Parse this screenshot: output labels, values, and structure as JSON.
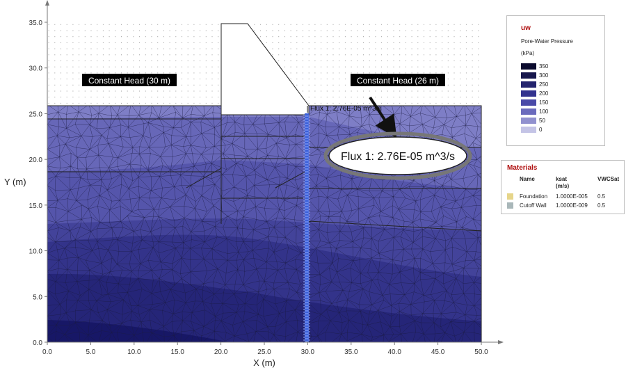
{
  "axes": {
    "x_label": "X (m)",
    "y_label": "Y (m)",
    "x_ticks": [
      "0.0",
      "5.0",
      "10.0",
      "15.0",
      "20.0",
      "25.0",
      "30.0",
      "35.0",
      "40.0",
      "45.0",
      "50.0"
    ],
    "y_ticks": [
      "0.0",
      "5.0",
      "10.0",
      "15.0",
      "20.0",
      "25.0",
      "30.0",
      "35.0"
    ],
    "x_range": [
      0,
      50
    ],
    "y_range": [
      0,
      35
    ]
  },
  "labels": {
    "left_head": "Constant Head (30 m)",
    "right_head": "Constant Head (26 m)",
    "flux_small": "Flux 1: 2.76E-05 m^3/s",
    "flux_callout": "Flux 1: 2.76E-05 m^3/s"
  },
  "legend": {
    "title": "uw",
    "subtitle": "Pore-Water Pressure",
    "unit": "(kPa)",
    "entries": [
      {
        "value": "350",
        "color": "#0b0b2e"
      },
      {
        "value": "300",
        "color": "#17174d"
      },
      {
        "value": "250",
        "color": "#24246e"
      },
      {
        "value": "200",
        "color": "#33338f"
      },
      {
        "value": "150",
        "color": "#4a4aa8"
      },
      {
        "value": "100",
        "color": "#6b6bbd"
      },
      {
        "value": "50",
        "color": "#9191cf"
      },
      {
        "value": "0",
        "color": "#c4c4e6"
      }
    ]
  },
  "materials": {
    "title": "Materials",
    "headers": {
      "name": "Name",
      "ksat": "ksat",
      "ksat_unit": "(m/s)",
      "vwc": "VWCSat"
    },
    "rows": [
      {
        "name": "Foundation",
        "ksat": "1.0000E-005",
        "vwc": "0.5",
        "color": "#e6d58a"
      },
      {
        "name": "Cutoff Wall",
        "ksat": "1.0000E-009",
        "vwc": "0.5",
        "color": "#a9b7b9"
      }
    ]
  },
  "colors": {
    "zone_top": "#7e7ec6",
    "zone_1": "#6767b8",
    "zone_2": "#5555ab",
    "zone_3": "#43439a",
    "zone_4": "#33338a",
    "zone_5": "#252578",
    "zone_6": "#171766",
    "mesh": "#1a1a40",
    "cutoff_wall": "#3b5fd8"
  }
}
